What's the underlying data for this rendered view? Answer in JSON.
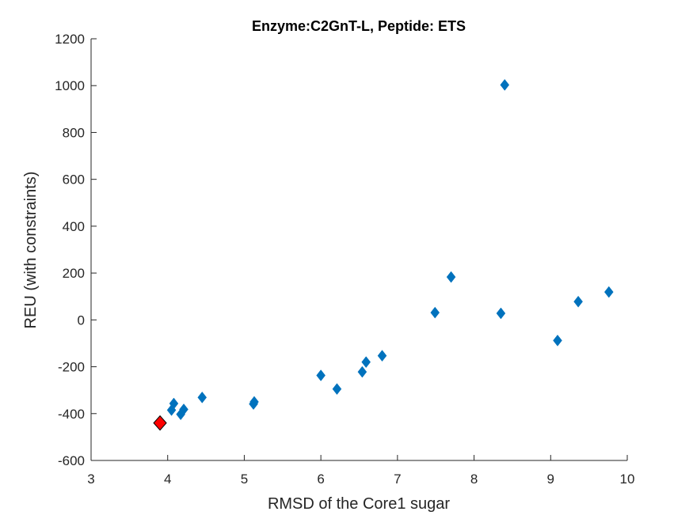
{
  "chart_data": {
    "type": "scatter",
    "title": "Enzyme:C2GnT-L, Peptide: ETS",
    "xlabel": "RMSD of the Core1 sugar",
    "ylabel": "REU (with constraints)",
    "xlim": [
      3,
      10
    ],
    "ylim": [
      -600,
      1200
    ],
    "xticks": [
      3,
      4,
      5,
      6,
      7,
      8,
      9,
      10
    ],
    "yticks": [
      -600,
      -400,
      -200,
      0,
      200,
      400,
      600,
      800,
      1000,
      1200
    ],
    "grid": false,
    "marker": "diamond",
    "series": [
      {
        "color": "#0072BD",
        "points": [
          [
            4.05,
            -385
          ],
          [
            4.08,
            -357
          ],
          [
            4.17,
            -403
          ],
          [
            4.21,
            -382
          ],
          [
            4.45,
            -331
          ],
          [
            5.12,
            -359
          ],
          [
            5.13,
            -350
          ],
          [
            6.0,
            -237
          ],
          [
            6.21,
            -295
          ],
          [
            6.54,
            -222
          ],
          [
            6.59,
            -180
          ],
          [
            6.8,
            -153
          ],
          [
            7.49,
            31
          ],
          [
            7.7,
            183
          ],
          [
            8.35,
            28
          ],
          [
            8.4,
            1003
          ],
          [
            9.09,
            -88
          ],
          [
            9.36,
            78
          ],
          [
            9.76,
            119
          ]
        ]
      },
      {
        "color": "#FF0000",
        "points": [
          [
            3.9,
            -440
          ]
        ]
      }
    ]
  }
}
